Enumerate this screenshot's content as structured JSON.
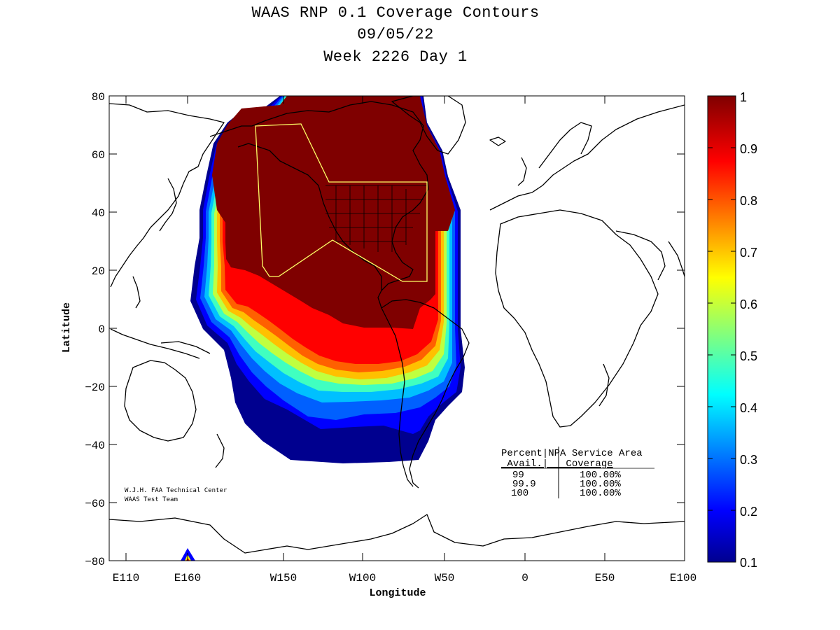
{
  "title": {
    "line1": "WAAS RNP 0.1 Coverage Contours",
    "line2": "09/05/22",
    "line3": "Week 2226 Day 1"
  },
  "axes": {
    "xlabel": "Longitude",
    "ylabel": "Latitude",
    "x_ticks": [
      "E110",
      "E160",
      "W150",
      "W100",
      "W50",
      "0",
      "E50",
      "E100"
    ],
    "y_ticks": [
      "80",
      "60",
      "40",
      "20",
      "0",
      "−20",
      "−40",
      "−60",
      "−80"
    ]
  },
  "colorbar": {
    "ticks": [
      "1",
      "0.9",
      "0.8",
      "0.7",
      "0.6",
      "0.5",
      "0.4",
      "0.3",
      "0.2",
      "0.1"
    ],
    "range": [
      0.1,
      1
    ],
    "colormap": "jet"
  },
  "table": {
    "header1": "Percent|NPA Service Area",
    "header2": " Avail.|   Coverage",
    "rows": [
      {
        "avail": "99",
        "coverage": "100.00%"
      },
      {
        "avail": "99.9",
        "coverage": "100.00%"
      },
      {
        "avail": "100",
        "coverage": "100.00%"
      }
    ]
  },
  "credits": {
    "line1": "W.J.H. FAA Technical Center",
    "line2": "WAAS Test Team"
  },
  "colors": {
    "dark_red": "#7f0000",
    "red": "#ff0000",
    "orange": "#ff8000",
    "yellow": "#ffff00",
    "cyan": "#00ffff",
    "blue": "#0000ff",
    "dark_blue": "#00008f",
    "service_area": "#ffff66"
  }
}
